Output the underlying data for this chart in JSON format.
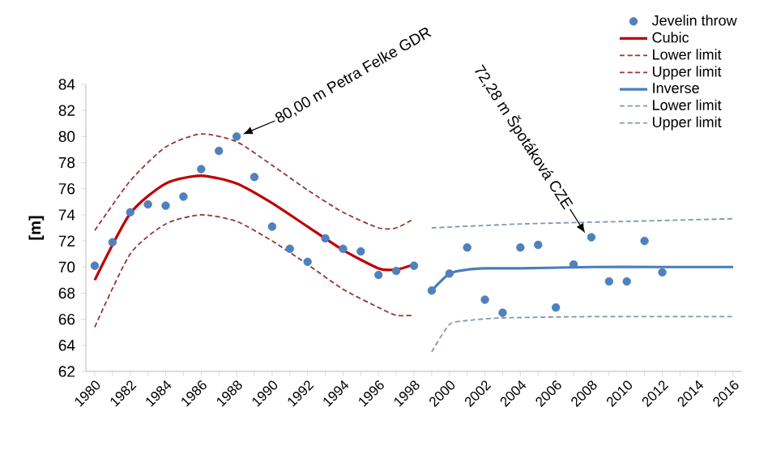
{
  "chart_data": {
    "type": "scatter",
    "ylabel": "[m]",
    "xlim": [
      1979.5,
      2016.5
    ],
    "ylim": [
      62,
      84
    ],
    "yticks": [
      62,
      64,
      66,
      68,
      70,
      72,
      74,
      76,
      78,
      80,
      82,
      84
    ],
    "xticks": [
      1980,
      {
        "value": 1981,
        "label": null
      },
      1982,
      {
        "value": 1983,
        "label": null
      },
      1984,
      {
        "value": 1985,
        "label": null
      },
      1986,
      {
        "value": 1987,
        "label": null
      },
      1988,
      {
        "value": 1989,
        "label": null
      },
      1990,
      {
        "value": 1991,
        "label": null
      },
      1992,
      {
        "value": 1993,
        "label": null
      },
      1994,
      {
        "value": 1995,
        "label": null
      },
      1996,
      {
        "value": 1997,
        "label": null
      },
      1998,
      {
        "value": 1999,
        "label": null
      },
      2000,
      {
        "value": 2001,
        "label": null
      },
      2002,
      {
        "value": 2003,
        "label": null
      },
      2004,
      {
        "value": 2005,
        "label": null
      },
      2006,
      {
        "value": 2007,
        "label": null
      },
      2008,
      {
        "value": 2009,
        "label": null
      },
      2010,
      {
        "value": 2011,
        "label": null
      },
      2012,
      {
        "value": 2013,
        "label": null
      },
      2014,
      {
        "value": 2015,
        "label": null
      },
      2016
    ],
    "grid": false,
    "legend": "top right",
    "annotations": [
      {
        "text": "80,00 m Petra Felke GDR",
        "x": 1988,
        "y": 80
      },
      {
        "text": "72,28 m Špotáková CZE",
        "x": 2008,
        "y": 72.28
      }
    ],
    "series": [
      {
        "name": "Jevelin throw",
        "marker": "circle",
        "color": "#4f81bd",
        "x": [
          1980,
          1981,
          1982,
          1983,
          1984,
          1985,
          1986,
          1987,
          1988,
          1989,
          1990,
          1991,
          1992,
          1993,
          1994,
          1995,
          1996,
          1997,
          1998,
          1999,
          2000,
          2001,
          2002,
          2003,
          2004,
          2005,
          2006,
          2007,
          2008,
          2009,
          2010,
          2011,
          2012
        ],
        "values": [
          70.1,
          71.9,
          74.2,
          74.8,
          74.7,
          75.4,
          77.5,
          78.9,
          80.0,
          76.9,
          73.1,
          71.4,
          70.4,
          72.2,
          71.4,
          71.2,
          69.4,
          69.7,
          70.1,
          68.2,
          69.5,
          71.5,
          67.5,
          66.5,
          71.5,
          71.7,
          66.9,
          70.2,
          72.28,
          68.9,
          68.9,
          72.0,
          69.6
        ]
      },
      {
        "name": "Cubic",
        "type": "line",
        "marker": "none",
        "line_style": "solid",
        "color": "#c00000",
        "x": [
          1980,
          1982,
          1984,
          1986,
          1988,
          1990,
          1992,
          1994,
          1996,
          1997,
          1998
        ],
        "values": [
          69.0,
          74.1,
          76.4,
          77.0,
          76.4,
          74.9,
          73.1,
          71.3,
          69.9,
          69.8,
          70.2
        ]
      },
      {
        "name": "Lower limit",
        "type": "line",
        "line_style": "dashed",
        "color": "#953735",
        "x": [
          1980,
          1982,
          1984,
          1986,
          1988,
          1990,
          1992,
          1994,
          1996,
          1997,
          1998
        ],
        "values": [
          65.4,
          71.0,
          73.3,
          74.0,
          73.5,
          72.0,
          70.2,
          68.3,
          66.9,
          66.3,
          66.3
        ]
      },
      {
        "name": "Upper limit",
        "type": "line",
        "line_style": "dashed",
        "color": "#953735",
        "x": [
          1980,
          1982,
          1984,
          1986,
          1988,
          1990,
          1992,
          1994,
          1996,
          1997,
          1998
        ],
        "values": [
          72.8,
          76.6,
          79.2,
          80.2,
          79.6,
          77.8,
          75.9,
          74.2,
          73.0,
          73.0,
          73.7
        ]
      },
      {
        "name": "Inverse",
        "type": "line",
        "marker": "none",
        "line_style": "solid",
        "color": "#4a7ebb",
        "x": [
          1999,
          2000,
          2001,
          2002,
          2003,
          2004,
          2008,
          2012,
          2016
        ],
        "values": [
          68.2,
          69.5,
          69.8,
          69.9,
          69.9,
          69.9,
          70.0,
          70.0,
          70.0
        ]
      },
      {
        "name": "Lower limit",
        "type": "line",
        "line_style": "dashed",
        "color": "#8496b0",
        "x": [
          1999,
          2000,
          2001,
          2003,
          2008,
          2016
        ],
        "values": [
          63.5,
          65.6,
          65.9,
          66.1,
          66.2,
          66.2
        ]
      },
      {
        "name": "Upper limit",
        "type": "line",
        "line_style": "dashed",
        "color": "#8496b0",
        "x": [
          1999,
          2004,
          2010,
          2016
        ],
        "values": [
          73.0,
          73.3,
          73.5,
          73.7
        ]
      }
    ]
  }
}
